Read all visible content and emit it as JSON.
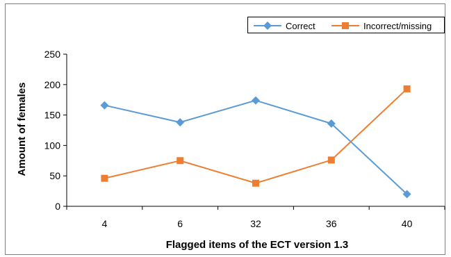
{
  "chart_data": {
    "type": "line",
    "title": "",
    "xlabel": "Flagged items of the ECT version 1.3",
    "ylabel": "Amount of females",
    "categories": [
      "4",
      "6",
      "32",
      "36",
      "40"
    ],
    "ylim": [
      0,
      250
    ],
    "yticks": [
      0,
      50,
      100,
      150,
      200,
      250
    ],
    "grid": false,
    "legend_position": "top-right",
    "series": [
      {
        "name": "Correct",
        "values": [
          166,
          138,
          174,
          136,
          20
        ],
        "color": "#5b9bd5",
        "marker": "diamond"
      },
      {
        "name": "Incorrect/missing",
        "values": [
          46,
          75,
          38,
          76,
          193
        ],
        "color": "#ed7d31",
        "marker": "square"
      }
    ]
  }
}
